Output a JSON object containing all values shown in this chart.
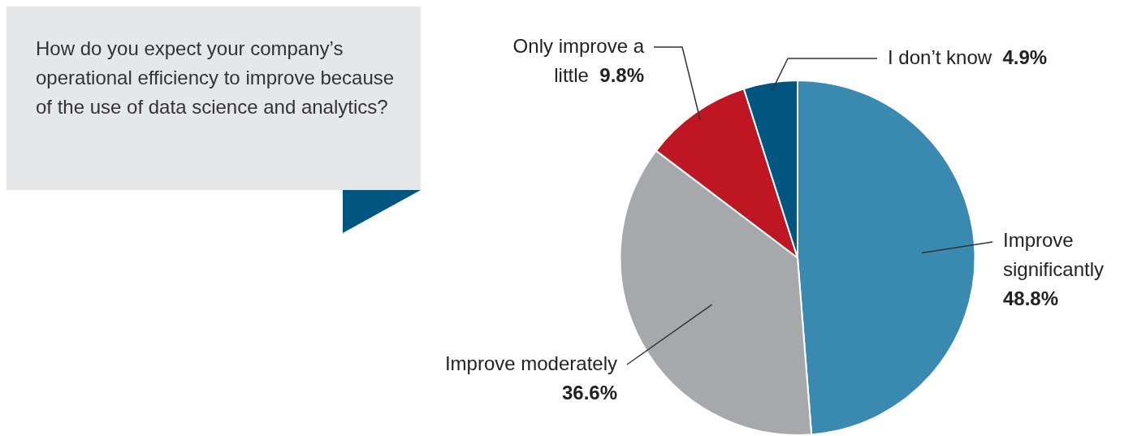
{
  "chart_data": {
    "type": "pie",
    "title": "How do you expect your company’s operational efficiency to improve because of the use of data science and analytics?",
    "categories": [
      "Improve significantly",
      "Improve moderately",
      "Only improve a little",
      "I don’t know"
    ],
    "values": [
      48.8,
      36.6,
      9.8,
      4.9
    ],
    "value_labels": [
      "48.8%",
      "36.6%",
      "9.8%",
      "4.9%"
    ],
    "colors": [
      "#3a89b0",
      "#a7a8ab",
      "#be1622",
      "#00567f"
    ],
    "legend": false
  }
}
